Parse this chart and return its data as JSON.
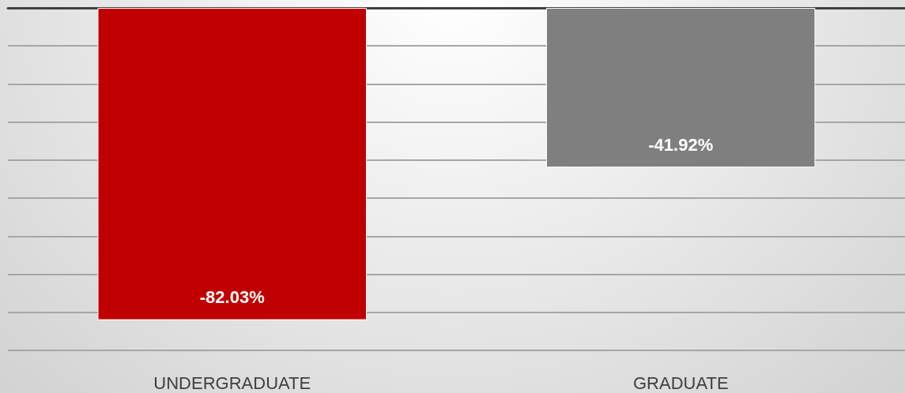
{
  "chart_data": {
    "type": "bar",
    "categories": [
      "UNDERGRADUATE",
      "GRADUATE"
    ],
    "values": [
      -82.03,
      -41.92
    ],
    "colors": [
      "#c00000",
      "#7f7f7f"
    ],
    "value_labels": [
      "-82.03%",
      "-41.92%"
    ],
    "ylim": [
      -90,
      0
    ],
    "yticks": [
      {
        "value": -90,
        "label": null
      },
      {
        "value": -80,
        "label": null
      },
      {
        "value": -70,
        "label": null
      },
      {
        "value": -60,
        "label": null
      },
      {
        "value": -50,
        "label": null
      },
      {
        "value": -40,
        "label": null
      },
      {
        "value": -30,
        "label": null
      },
      {
        "value": -20,
        "label": null
      },
      {
        "value": -10,
        "label": null
      },
      {
        "value": 0,
        "label": null
      }
    ],
    "grid": "y",
    "tick_labels": "x"
  }
}
